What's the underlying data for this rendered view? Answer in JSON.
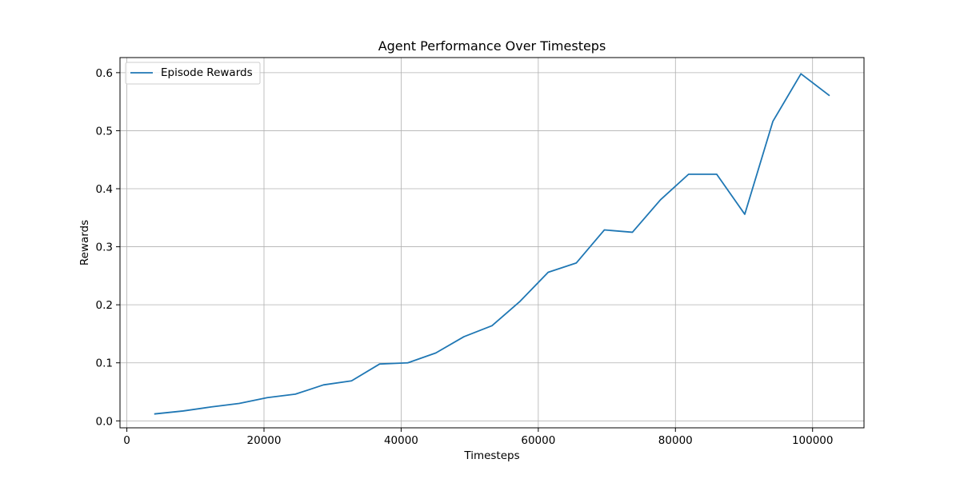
{
  "chart_data": {
    "type": "line",
    "title": "Agent Performance Over Timesteps",
    "xlabel": "Timesteps",
    "ylabel": "Rewards",
    "xlim": [
      -1000,
      107500
    ],
    "ylim": [
      -0.012,
      0.626
    ],
    "x_ticks": [
      0,
      20000,
      40000,
      60000,
      80000,
      100000
    ],
    "y_ticks": [
      0.0,
      0.1,
      0.2,
      0.3,
      0.4,
      0.5,
      0.6
    ],
    "grid": true,
    "legend_position": "upper-left",
    "series": [
      {
        "name": "Episode Rewards",
        "color": "#1f77b4",
        "x": [
          4096,
          8192,
          12288,
          16384,
          20480,
          24576,
          28672,
          32768,
          36864,
          40960,
          45056,
          49152,
          53248,
          57344,
          61440,
          65536,
          69632,
          73728,
          77824,
          81920,
          86016,
          90112,
          94208,
          98304,
          102400
        ],
        "y": [
          0.012,
          0.017,
          0.024,
          0.03,
          0.04,
          0.046,
          0.062,
          0.069,
          0.098,
          0.1,
          0.117,
          0.145,
          0.164,
          0.206,
          0.256,
          0.272,
          0.329,
          0.325,
          0.381,
          0.425,
          0.425,
          0.356,
          0.516,
          0.598,
          0.561
        ]
      }
    ]
  }
}
